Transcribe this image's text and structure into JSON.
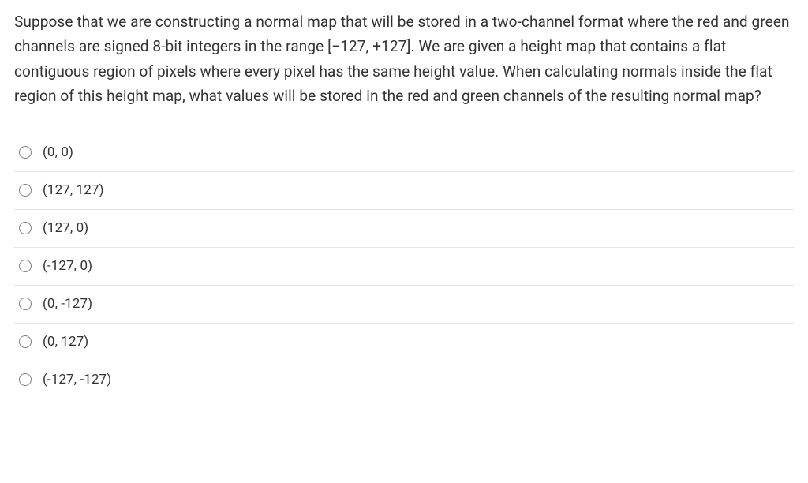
{
  "question_text": "Suppose that we are constructing a normal map that will be stored in a two-channel format where the red and green channels are signed 8-bit integers in the range [−127, +127]. We are given a height map that contains a flat contiguous region of pixels where every pixel has the same height value. When calculating normals inside the flat region of this height map, what values will be stored in the red and green channels of the resulting normal map?",
  "options": [
    {
      "label": "(0, 0)"
    },
    {
      "label": "(127, 127)"
    },
    {
      "label": "(127, 0)"
    },
    {
      "label": "(-127, 0)"
    },
    {
      "label": "(0, -127)"
    },
    {
      "label": "(0, 127)"
    },
    {
      "label": "(-127, -127)"
    }
  ],
  "styling": {
    "text_color": "#333333",
    "divider_color": "#e3e3e3",
    "radio_border_color": "#808080",
    "background_color": "#ffffff",
    "question_fontsize": 19,
    "option_fontsize": 17,
    "question_lineheight": 1.65
  }
}
